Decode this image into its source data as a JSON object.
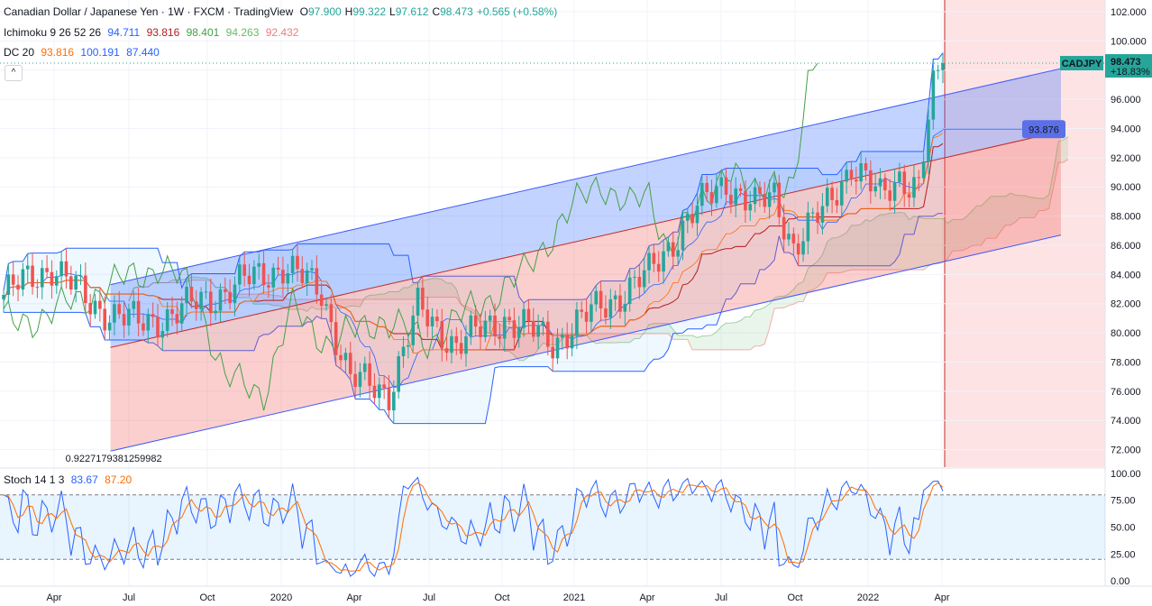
{
  "header": {
    "symbol_title": "Canadian Dollar / Japanese Yen · 1W · FXCM · TradingView",
    "ohlc": [
      {
        "label": "O",
        "value": "97.900"
      },
      {
        "label": "H",
        "value": "99.322"
      },
      {
        "label": "L",
        "value": "97.612"
      },
      {
        "label": "C",
        "value": "98.473"
      },
      {
        "label": "",
        "value": "+0.565 (+0.58%)"
      }
    ],
    "ichimoku": {
      "label": "Ichimoku 9 26 52 26",
      "values": [
        "94.711",
        "93.816",
        "98.401",
        "94.263",
        "92.432"
      ]
    },
    "dc": {
      "label": "DC 20",
      "values": [
        "93.816",
        "100.191",
        "87.440"
      ]
    },
    "collapse_button": "^"
  },
  "price_tag": {
    "symbol": "CADJPY",
    "price": "98.473",
    "change": "+18.83%"
  },
  "line_tag": "93.876",
  "regression_label": "0.9227179381259982",
  "stoch": {
    "label": "Stoch 14 1 3",
    "k": "83.67",
    "d": "87.20"
  },
  "colors": {
    "up": "#26a69a",
    "down": "#ef5350",
    "k": "#2962ff",
    "d": "#ff6d00",
    "chikou": "#43a047",
    "tag": "#26a69a",
    "line_tag": "#5b6fe6"
  },
  "chart_data": [
    {
      "type": "candlestick",
      "symbol": "CADJPY",
      "timeframe": "1W",
      "y_ticks": [
        "72.000",
        "74.000",
        "76.000",
        "78.000",
        "80.000",
        "82.000",
        "84.000",
        "86.000",
        "88.000",
        "90.000",
        "92.000",
        "94.000",
        "96.000",
        "98.000",
        "100.000",
        "102.000"
      ],
      "ylim": [
        70.8,
        102.8
      ],
      "x_ticks": [
        "Apr",
        "Jul",
        "Oct",
        "2020",
        "Apr",
        "Jul",
        "Oct",
        "2021",
        "Apr",
        "Jul",
        "Oct",
        "2022",
        "Apr"
      ],
      "last_price": 98.473,
      "regression_channel": {
        "start": [
          0.1,
          79.0
        ],
        "end": [
          0.96,
          93.8
        ],
        "upper_offset": 4.3,
        "lower_offset": -7.1
      }
    },
    {
      "type": "line",
      "name": "Stoch 14 1 3",
      "y_ticks": [
        "0.00",
        "25.00",
        "50.00",
        "75.00",
        "100.00"
      ],
      "ylim": [
        -5,
        105
      ],
      "bands": [
        20,
        80
      ],
      "series": [
        {
          "name": "%K",
          "last": 83.67
        },
        {
          "name": "%D",
          "last": 87.2
        }
      ]
    }
  ]
}
